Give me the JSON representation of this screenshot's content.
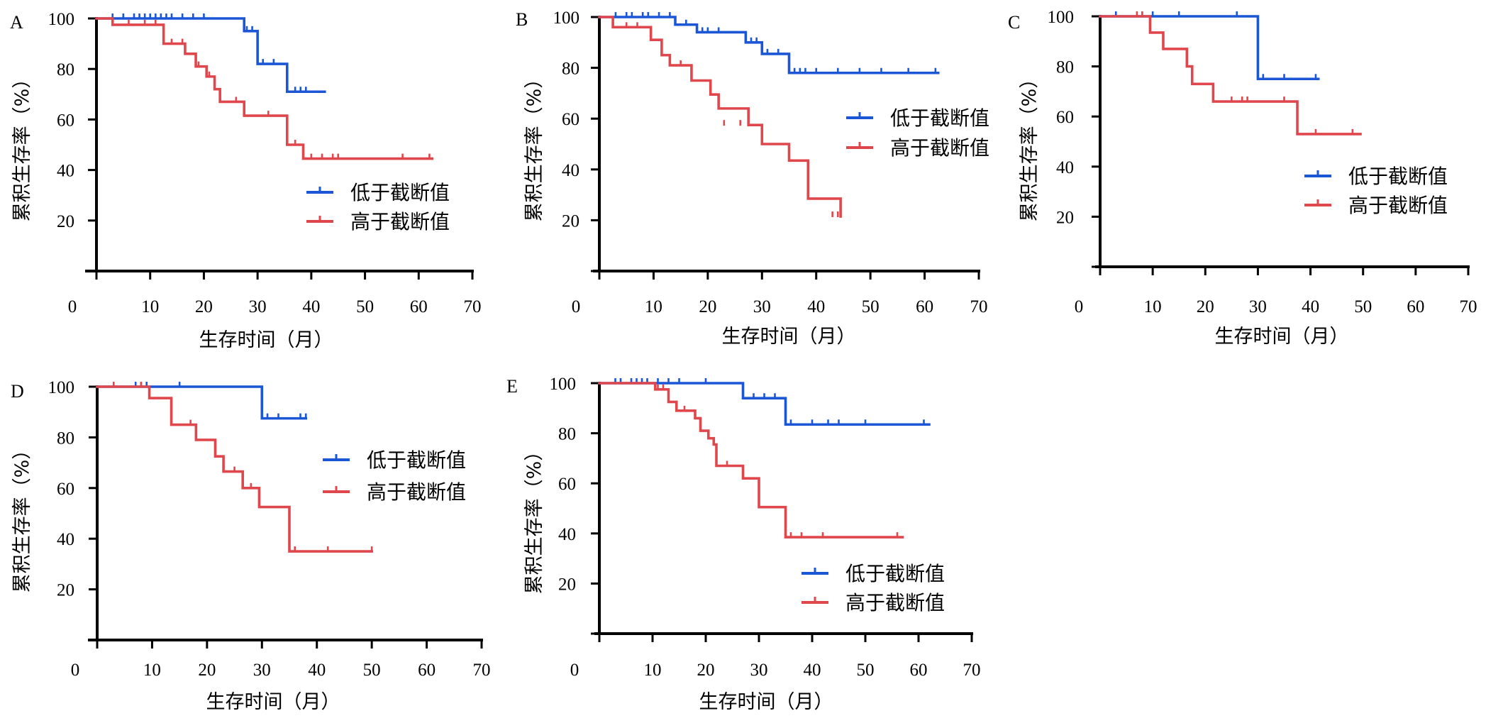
{
  "chart_data": [
    {
      "panel": "A",
      "type": "line",
      "xlabel": "生存时间（月）",
      "ylabel": "累积生存率（%）",
      "xlim": [
        0,
        70
      ],
      "ylim": [
        0,
        100
      ],
      "xticks": [
        0,
        10,
        20,
        30,
        40,
        50,
        60,
        70
      ],
      "yticks": [
        20,
        40,
        60,
        80,
        100
      ],
      "legend_position": "lower-right",
      "series": [
        {
          "name": "低于截断值",
          "color": "#1a56d6",
          "x": [
            0,
            27.5,
            30,
            35.5,
            42.5
          ],
          "y": [
            100,
            95,
            82,
            71,
            71
          ],
          "censored": [
            [
              3,
              100
            ],
            [
              5,
              100
            ],
            [
              7,
              100
            ],
            [
              8,
              100
            ],
            [
              9,
              100
            ],
            [
              10,
              100
            ],
            [
              11,
              100
            ],
            [
              12,
              100
            ],
            [
              13,
              100
            ],
            [
              14,
              100
            ],
            [
              16,
              100
            ],
            [
              18,
              100
            ],
            [
              20,
              100
            ],
            [
              28,
              95
            ],
            [
              29,
              95
            ],
            [
              31,
              82
            ],
            [
              33,
              82
            ],
            [
              37,
              71
            ],
            [
              38,
              71
            ],
            [
              39,
              71
            ]
          ]
        },
        {
          "name": "高于截断值",
          "color": "#e0474c",
          "x": [
            0,
            3,
            12.5,
            16.5,
            18.5,
            20.5,
            22,
            23,
            27.5,
            35.5,
            38.5,
            62.5
          ],
          "y": [
            100,
            97.5,
            90,
            86,
            81,
            77,
            72,
            67,
            61.5,
            50,
            44.5,
            44.5
          ],
          "censored": [
            [
              6,
              97.5
            ],
            [
              9,
              97.5
            ],
            [
              11,
              97.5
            ],
            [
              14,
              90
            ],
            [
              16,
              90
            ],
            [
              19,
              81
            ],
            [
              21,
              77
            ],
            [
              26,
              67
            ],
            [
              32,
              61.5
            ],
            [
              37,
              50
            ],
            [
              40,
              44.5
            ],
            [
              42,
              44.5
            ],
            [
              44,
              44.5
            ],
            [
              45,
              44.5
            ],
            [
              57,
              44.5
            ],
            [
              62,
              44.5
            ]
          ]
        }
      ]
    },
    {
      "panel": "B",
      "type": "line",
      "xlabel": "生存时间（月）",
      "ylabel": "累积生存率（%）",
      "xlim": [
        0,
        70
      ],
      "ylim": [
        0,
        100
      ],
      "xticks": [
        0,
        10,
        20,
        30,
        40,
        50,
        60,
        70
      ],
      "yticks": [
        20,
        40,
        60,
        80,
        100
      ],
      "legend_position": "center-right",
      "series": [
        {
          "name": "低于截断值",
          "color": "#1a56d6",
          "x": [
            0,
            14,
            18,
            27,
            30,
            35,
            62.5
          ],
          "y": [
            100,
            97,
            94,
            90,
            85.5,
            78,
            78
          ],
          "censored": [
            [
              3,
              100
            ],
            [
              5,
              100
            ],
            [
              6,
              100
            ],
            [
              8,
              100
            ],
            [
              9,
              100
            ],
            [
              11,
              100
            ],
            [
              13,
              100
            ],
            [
              16,
              97
            ],
            [
              19,
              94
            ],
            [
              20,
              94
            ],
            [
              22,
              94
            ],
            [
              28,
              90
            ],
            [
              29,
              90
            ],
            [
              31,
              85.5
            ],
            [
              33,
              85.5
            ],
            [
              36,
              78
            ],
            [
              37,
              78
            ],
            [
              38,
              78
            ],
            [
              40,
              78
            ],
            [
              44,
              78
            ],
            [
              48,
              78
            ],
            [
              52,
              78
            ],
            [
              57,
              78
            ],
            [
              62,
              78
            ]
          ]
        },
        {
          "name": "高于截断值",
          "color": "#e0474c",
          "x": [
            0,
            2.5,
            9.5,
            11.5,
            13,
            17,
            20.5,
            22,
            27.5,
            30,
            35,
            38.5,
            44.5
          ],
          "y": [
            100,
            96,
            91,
            85,
            81,
            75,
            69.5,
            64,
            57.5,
            50,
            43.5,
            28.5,
            21.5
          ],
          "censored": [
            [
              5,
              96
            ],
            [
              7,
              96
            ],
            [
              15,
              81
            ],
            [
              23,
              57.5
            ],
            [
              26,
              57.5
            ],
            [
              43,
              21.5
            ],
            [
              44,
              21.5
            ]
          ]
        }
      ]
    },
    {
      "panel": "C",
      "type": "line",
      "xlabel": "生存时间（月）",
      "ylabel": "累积生存率（%）",
      "xlim": [
        0,
        70
      ],
      "ylim": [
        0,
        100
      ],
      "xticks": [
        0,
        10,
        20,
        30,
        40,
        50,
        60,
        70
      ],
      "yticks": [
        20,
        40,
        60,
        80,
        100
      ],
      "legend_position": "lower-right",
      "series": [
        {
          "name": "低于截断值",
          "color": "#1a56d6",
          "x": [
            0,
            30,
            41.5
          ],
          "y": [
            100,
            75,
            75
          ],
          "censored": [
            [
              3,
              100
            ],
            [
              8,
              100
            ],
            [
              10,
              100
            ],
            [
              15,
              100
            ],
            [
              26,
              100
            ],
            [
              31,
              75
            ],
            [
              35,
              75
            ],
            [
              41,
              75
            ]
          ]
        },
        {
          "name": "高于截断值",
          "color": "#e0474c",
          "x": [
            0,
            9.5,
            12,
            16.5,
            17.5,
            21.5,
            37.5,
            49.5
          ],
          "y": [
            100,
            93.5,
            87,
            80,
            73,
            66,
            53,
            53
          ],
          "censored": [
            [
              7,
              100
            ],
            [
              8,
              100
            ],
            [
              25,
              66
            ],
            [
              27,
              66
            ],
            [
              28,
              66
            ],
            [
              35,
              66
            ],
            [
              41,
              53
            ],
            [
              48,
              53
            ]
          ]
        }
      ]
    },
    {
      "panel": "D",
      "type": "line",
      "xlabel": "生存时间（月）",
      "ylabel": "累积生存率（%）",
      "xlim": [
        0,
        70
      ],
      "ylim": [
        0,
        100
      ],
      "xticks": [
        0,
        10,
        20,
        30,
        40,
        50,
        60,
        70
      ],
      "yticks": [
        20,
        40,
        60,
        80,
        100
      ],
      "legend_position": "center-right",
      "series": [
        {
          "name": "低于截断值",
          "color": "#1a56d6",
          "x": [
            0,
            30,
            38
          ],
          "y": [
            100,
            87.5,
            87.5
          ],
          "censored": [
            [
              7,
              100
            ],
            [
              8,
              100
            ],
            [
              9,
              100
            ],
            [
              15,
              100
            ],
            [
              31,
              87.5
            ],
            [
              33,
              87.5
            ],
            [
              37,
              87.5
            ],
            [
              38,
              87.5
            ]
          ]
        },
        {
          "name": "高于截断值",
          "color": "#e0474c",
          "x": [
            0,
            9.5,
            13.5,
            18,
            21.5,
            23,
            26.5,
            29.5,
            35,
            50
          ],
          "y": [
            100,
            95.5,
            85,
            79,
            72.5,
            66.5,
            60,
            52.5,
            35,
            35
          ],
          "censored": [
            [
              3,
              100
            ],
            [
              8,
              100
            ],
            [
              17,
              85
            ],
            [
              25,
              66.5
            ],
            [
              28,
              60
            ],
            [
              36,
              35
            ],
            [
              42,
              35
            ],
            [
              50,
              35
            ]
          ]
        }
      ]
    },
    {
      "panel": "E",
      "type": "line",
      "xlabel": "生存时间（月）",
      "ylabel": "累积生存率（%）",
      "xlim": [
        0,
        70
      ],
      "ylim": [
        0,
        100
      ],
      "xticks": [
        0,
        10,
        20,
        30,
        40,
        50,
        60,
        70
      ],
      "yticks": [
        20,
        40,
        60,
        80,
        100
      ],
      "legend_position": "lower-right",
      "series": [
        {
          "name": "低于截断值",
          "color": "#1a56d6",
          "x": [
            0,
            27,
            35,
            62
          ],
          "y": [
            100,
            94,
            83.5,
            83.5
          ],
          "censored": [
            [
              3,
              100
            ],
            [
              4,
              100
            ],
            [
              6,
              100
            ],
            [
              7,
              100
            ],
            [
              8,
              100
            ],
            [
              9,
              100
            ],
            [
              11,
              100
            ],
            [
              13,
              100
            ],
            [
              15,
              100
            ],
            [
              20,
              100
            ],
            [
              29,
              94
            ],
            [
              31,
              94
            ],
            [
              33,
              94
            ],
            [
              36,
              83.5
            ],
            [
              40,
              83.5
            ],
            [
              43,
              83.5
            ],
            [
              45,
              83.5
            ],
            [
              50,
              83.5
            ],
            [
              61,
              83.5
            ]
          ]
        },
        {
          "name": "高于截断值",
          "color": "#e0474c",
          "x": [
            0,
            10.5,
            13,
            14.5,
            18,
            19,
            20.5,
            21.5,
            22,
            27,
            30,
            35,
            57
          ],
          "y": [
            100,
            97.5,
            92.5,
            89,
            86,
            81,
            78,
            75.5,
            67,
            62,
            50.5,
            38.5,
            38.5
          ],
          "censored": [
            [
              11,
              97.5
            ],
            [
              12,
              97.5
            ],
            [
              16,
              89
            ],
            [
              24,
              67
            ],
            [
              36,
              38.5
            ],
            [
              38,
              38.5
            ],
            [
              42,
              38.5
            ],
            [
              56,
              38.5
            ]
          ]
        }
      ]
    }
  ]
}
